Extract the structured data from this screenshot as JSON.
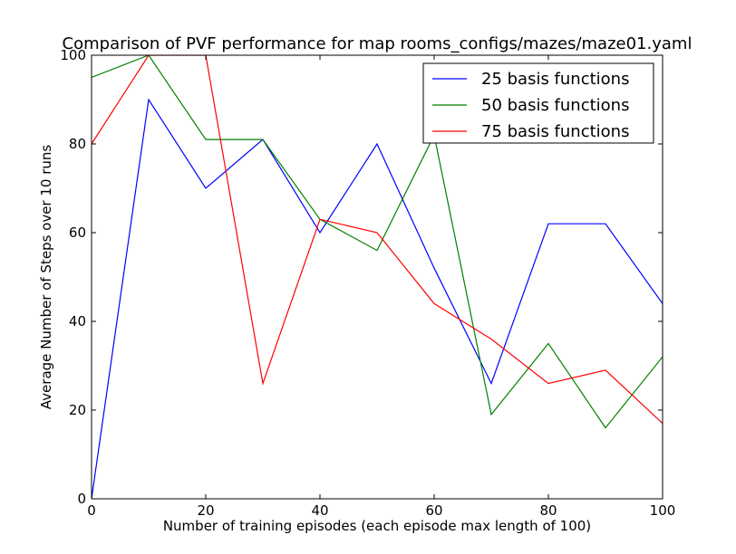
{
  "chart_data": {
    "type": "line",
    "title": "Comparison of PVF performance for map rooms_configs/mazes/maze01.yaml",
    "xlabel": "Number of training episodes (each episode max length of 100)",
    "ylabel": "Average Number of Steps over 10 runs",
    "xlim": [
      0,
      100
    ],
    "ylim": [
      0,
      100
    ],
    "xticks": [
      0,
      20,
      40,
      60,
      80,
      100
    ],
    "yticks": [
      0,
      20,
      40,
      60,
      80,
      100
    ],
    "x": [
      0,
      10,
      20,
      30,
      40,
      50,
      60,
      70,
      80,
      90,
      100
    ],
    "grid": false,
    "legend_position": "top-right",
    "series": [
      {
        "name": "25 basis functions",
        "color": "#0000ff",
        "values": [
          0,
          90,
          70,
          81,
          60,
          80,
          52,
          26,
          62,
          62,
          44
        ]
      },
      {
        "name": "50 basis functions",
        "color": "#008000",
        "values": [
          95,
          100,
          81,
          81,
          63,
          56,
          82,
          19,
          35,
          16,
          32
        ]
      },
      {
        "name": "75 basis functions",
        "color": "#ff0000",
        "values": [
          80,
          100,
          100,
          26,
          63,
          60,
          44,
          36,
          26,
          29,
          17
        ]
      }
    ]
  }
}
